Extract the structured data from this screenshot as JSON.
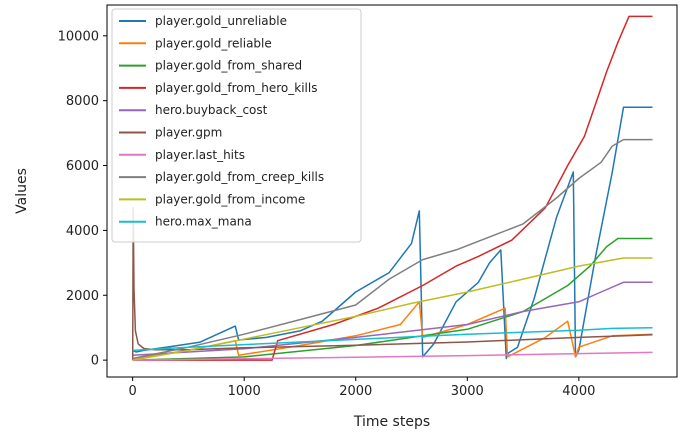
{
  "chart_data": {
    "type": "line",
    "xlabel": "Time steps",
    "ylabel": "Values",
    "xlim": [
      -230,
      4880
    ],
    "ylim": [
      -520,
      10950
    ],
    "xticks": [
      0,
      1000,
      2000,
      3000,
      4000
    ],
    "yticks": [
      0,
      2000,
      4000,
      6000,
      8000,
      10000
    ],
    "legend_position": "upper-left",
    "grid": false,
    "series": [
      {
        "name": "player.gold_unreliable",
        "color": "#1f77b4",
        "x": [
          0,
          30,
          100,
          300,
          600,
          920,
          950,
          1200,
          1500,
          1700,
          1800,
          2000,
          2300,
          2500,
          2570,
          2600,
          2700,
          2900,
          3100,
          3200,
          3300,
          3350,
          3360,
          3450,
          3600,
          3800,
          3950,
          3970,
          4000,
          4150,
          4300,
          4400,
          4660
        ],
        "y": [
          300,
          250,
          300,
          400,
          550,
          1050,
          620,
          700,
          900,
          1200,
          1500,
          2100,
          2700,
          3600,
          4600,
          100,
          500,
          1800,
          2400,
          3000,
          3400,
          50,
          200,
          400,
          1900,
          4400,
          5800,
          100,
          300,
          3200,
          5800,
          7800,
          7800
        ]
      },
      {
        "name": "player.gold_reliable",
        "color": "#ff7f0e",
        "x": [
          0,
          500,
          920,
          950,
          1500,
          2000,
          2400,
          2570,
          2600,
          3000,
          3340,
          3360,
          3700,
          3900,
          3970,
          4000,
          4300,
          4660
        ],
        "y": [
          50,
          300,
          600,
          150,
          450,
          750,
          1100,
          1800,
          700,
          1100,
          1600,
          100,
          700,
          1200,
          100,
          400,
          750,
          800
        ]
      },
      {
        "name": "player.gold_from_shared",
        "color": "#2ca02c",
        "x": [
          0,
          1000,
          2000,
          3000,
          3500,
          3900,
          4100,
          4250,
          4350,
          4660
        ],
        "y": [
          0,
          100,
          450,
          950,
          1500,
          2300,
          2900,
          3500,
          3750,
          3750
        ]
      },
      {
        "name": "player.gold_from_hero_kills",
        "color": "#d62728",
        "x": [
          0,
          1250,
          1300,
          1800,
          2200,
          2600,
          2900,
          3100,
          3400,
          3700,
          3900,
          4050,
          4150,
          4250,
          4350,
          4450,
          4660
        ],
        "y": [
          0,
          0,
          600,
          1100,
          1600,
          2300,
          2900,
          3200,
          3700,
          4700,
          6000,
          6900,
          7900,
          8900,
          9800,
          10600,
          10600
        ]
      },
      {
        "name": "hero.buyback_cost",
        "color": "#9467bd",
        "x": [
          0,
          1000,
          2000,
          3000,
          3500,
          4000,
          4200,
          4400,
          4660
        ],
        "y": [
          150,
          350,
          700,
          1100,
          1500,
          1800,
          2100,
          2400,
          2400
        ]
      },
      {
        "name": "player.gpm",
        "color": "#8c564b",
        "x": [
          0,
          5,
          12,
          25,
          50,
          100,
          200,
          500,
          1000,
          2000,
          3000,
          4000,
          4660
        ],
        "y": [
          0,
          4700,
          2200,
          900,
          500,
          360,
          320,
          320,
          380,
          460,
          560,
          700,
          780
        ]
      },
      {
        "name": "player.last_hits",
        "color": "#e377c2",
        "x": [
          0,
          1000,
          2000,
          3000,
          4000,
          4660
        ],
        "y": [
          0,
          40,
          90,
          140,
          200,
          240
        ]
      },
      {
        "name": "player.gold_from_creep_kills",
        "color": "#7f7f7f",
        "x": [
          0,
          500,
          1000,
          1500,
          2000,
          2300,
          2600,
          2900,
          3200,
          3500,
          3800,
          4000,
          4200,
          4300,
          4400,
          4660
        ],
        "y": [
          50,
          400,
          800,
          1250,
          1700,
          2500,
          3100,
          3400,
          3800,
          4200,
          5000,
          5600,
          6100,
          6600,
          6800,
          6800
        ]
      },
      {
        "name": "player.gold_from_income",
        "color": "#bcbd22",
        "x": [
          0,
          500,
          1000,
          1500,
          2000,
          2500,
          3000,
          3500,
          4000,
          4400,
          4660
        ],
        "y": [
          0,
          300,
          650,
          1000,
          1350,
          1750,
          2100,
          2500,
          2900,
          3150,
          3150
        ]
      },
      {
        "name": "hero.max_mana",
        "color": "#17becf",
        "x": [
          0,
          500,
          1000,
          1500,
          2000,
          2500,
          3000,
          3500,
          4000,
          4300,
          4660
        ],
        "y": [
          300,
          400,
          480,
          560,
          640,
          720,
          800,
          860,
          920,
          980,
          1000
        ]
      }
    ]
  }
}
